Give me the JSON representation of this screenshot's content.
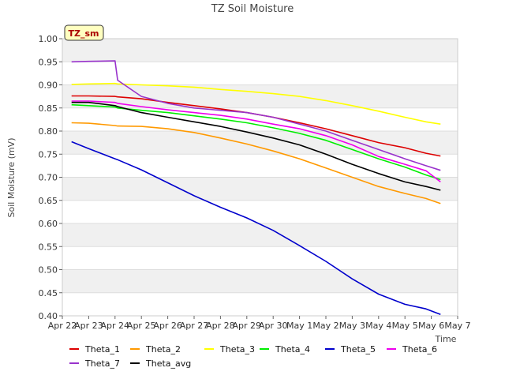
{
  "chart_data": {
    "type": "line",
    "title": "TZ Soil Moisture",
    "xlabel": "Time",
    "ylabel": "Soil Moisture (mV)",
    "badge": "TZ_sm",
    "ylim": [
      0.4,
      1.0
    ],
    "yticks": [
      "0.40",
      "0.45",
      "0.50",
      "0.55",
      "0.60",
      "0.65",
      "0.70",
      "0.75",
      "0.80",
      "0.85",
      "0.90",
      "0.95",
      "1.00"
    ],
    "xticks": [
      "Apr 22",
      "Apr 23",
      "Apr 24",
      "Apr 25",
      "Apr 26",
      "Apr 27",
      "Apr 28",
      "Apr 29",
      "Apr 30",
      "May 1",
      "May 2",
      "May 3",
      "May 4",
      "May 5",
      "May 6",
      "May 7"
    ],
    "x_days": [
      0.35,
      1.0,
      2.0,
      2.1,
      3.0,
      4.0,
      5.0,
      6.0,
      7.0,
      8.0,
      9.0,
      10.0,
      11.0,
      12.0,
      13.0,
      13.8,
      14.35
    ],
    "series": [
      {
        "name": "Theta_1",
        "color": "#dd0000",
        "values": [
          0.876,
          0.876,
          0.875,
          0.874,
          0.87,
          0.862,
          0.855,
          0.848,
          0.84,
          0.83,
          0.818,
          0.805,
          0.79,
          0.775,
          0.764,
          0.752,
          0.746
        ]
      },
      {
        "name": "Theta_2",
        "color": "#ff9900",
        "values": [
          0.818,
          0.817,
          0.812,
          0.811,
          0.81,
          0.805,
          0.797,
          0.785,
          0.772,
          0.757,
          0.74,
          0.72,
          0.7,
          0.68,
          0.665,
          0.654,
          0.643
        ]
      },
      {
        "name": "Theta_3",
        "color": "#ffff00",
        "values": [
          0.901,
          0.902,
          0.903,
          0.902,
          0.9,
          0.898,
          0.895,
          0.89,
          0.886,
          0.881,
          0.875,
          0.866,
          0.855,
          0.843,
          0.83,
          0.82,
          0.815
        ]
      },
      {
        "name": "Theta_4",
        "color": "#00ee00",
        "values": [
          0.857,
          0.855,
          0.852,
          0.85,
          0.845,
          0.84,
          0.833,
          0.826,
          0.818,
          0.807,
          0.795,
          0.78,
          0.76,
          0.74,
          0.722,
          0.705,
          0.695
        ]
      },
      {
        "name": "Theta_5",
        "color": "#0000cc",
        "values": [
          0.777,
          0.762,
          0.74,
          0.738,
          0.716,
          0.688,
          0.66,
          0.635,
          0.612,
          0.585,
          0.552,
          0.518,
          0.48,
          0.447,
          0.425,
          0.415,
          0.403
        ]
      },
      {
        "name": "Theta_6",
        "color": "#ee00ee",
        "values": [
          0.865,
          0.865,
          0.862,
          0.86,
          0.853,
          0.846,
          0.84,
          0.834,
          0.826,
          0.815,
          0.805,
          0.79,
          0.77,
          0.745,
          0.728,
          0.714,
          0.69
        ]
      },
      {
        "name": "Theta_7",
        "color": "#9933cc",
        "values": [
          0.95,
          0.951,
          0.952,
          0.91,
          0.875,
          0.86,
          0.85,
          0.845,
          0.84,
          0.83,
          0.815,
          0.8,
          0.78,
          0.76,
          0.74,
          0.725,
          0.715
        ]
      },
      {
        "name": "Theta_avg",
        "color": "#000000",
        "values": [
          0.862,
          0.862,
          0.855,
          0.853,
          0.84,
          0.83,
          0.82,
          0.81,
          0.798,
          0.785,
          0.77,
          0.75,
          0.728,
          0.708,
          0.69,
          0.68,
          0.672
        ]
      }
    ]
  }
}
